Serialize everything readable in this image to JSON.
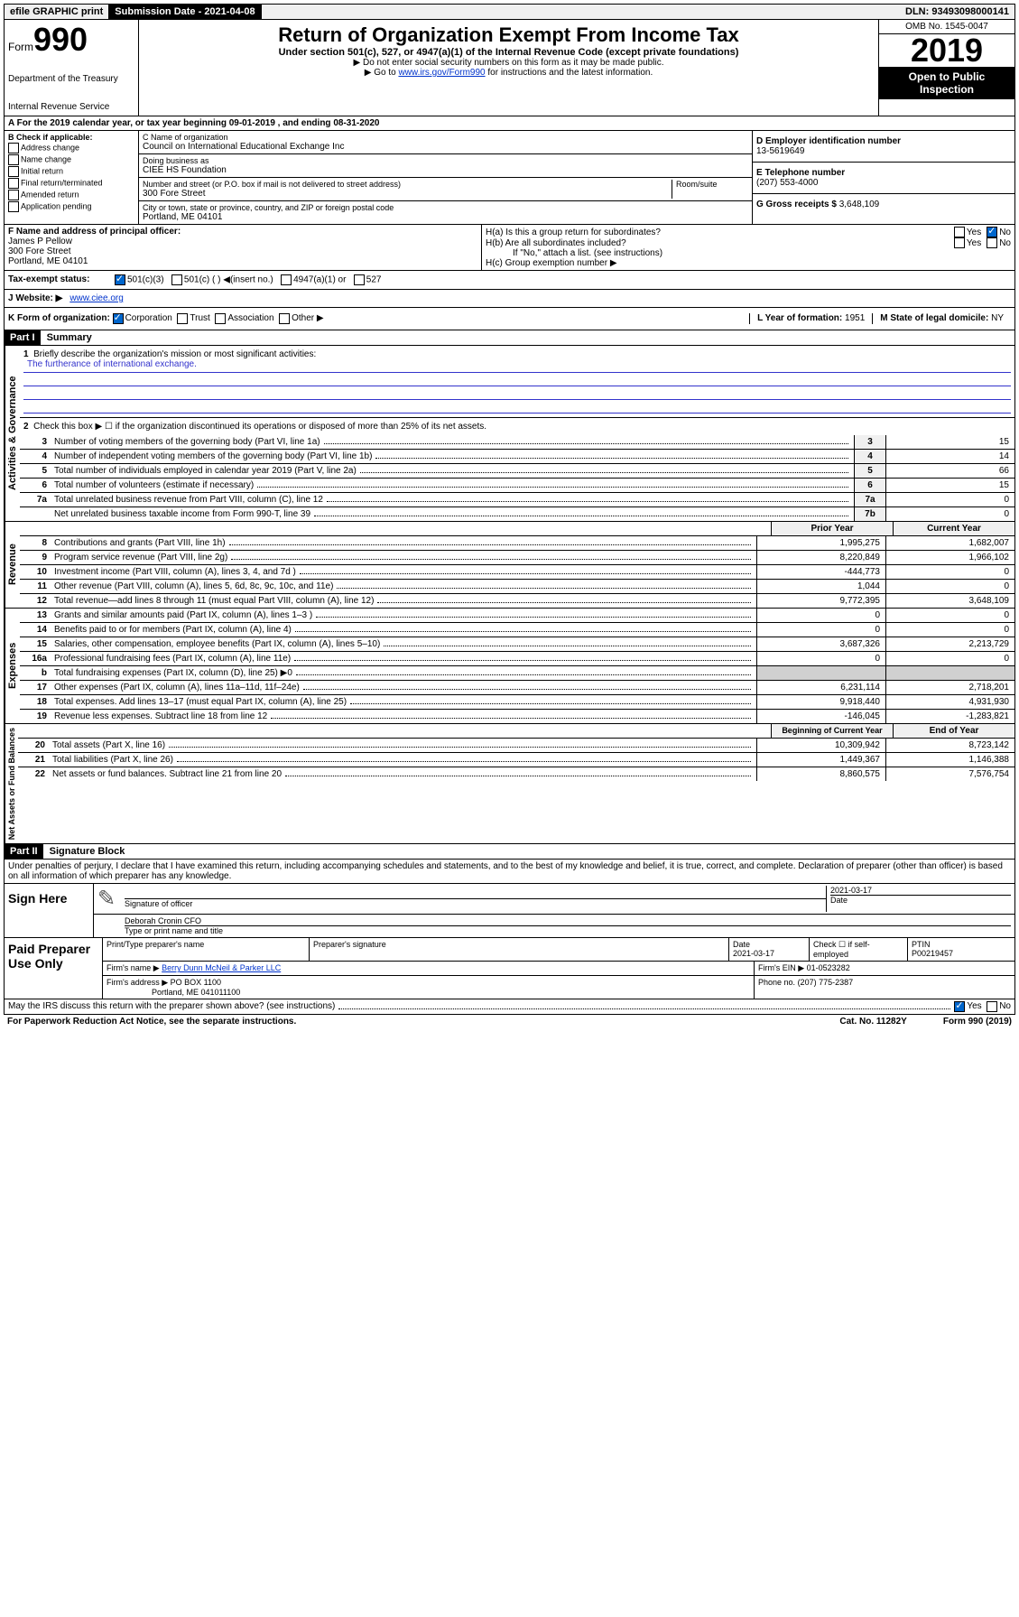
{
  "top": {
    "efile": "efile GRAPHIC print",
    "submission": "Submission Date - 2021-04-08",
    "dln": "DLN: 93493098000141"
  },
  "header": {
    "form_label": "Form",
    "form_number": "990",
    "dept1": "Department of the Treasury",
    "dept2": "Internal Revenue Service",
    "title": "Return of Organization Exempt From Income Tax",
    "subtitle": "Under section 501(c), 527, or 4947(a)(1) of the Internal Revenue Code (except private foundations)",
    "instr1": "▶ Do not enter social security numbers on this form as it may be made public.",
    "instr2_pre": "▶ Go to ",
    "instr2_link": "www.irs.gov/Form990",
    "instr2_post": " for instructions and the latest information.",
    "omb": "OMB No. 1545-0047",
    "year": "2019",
    "open": "Open to Public Inspection"
  },
  "section_a": "A For the 2019 calendar year, or tax year beginning 09-01-2019    , and ending 08-31-2020",
  "b": {
    "header": "B Check if applicable:",
    "opts": [
      "Address change",
      "Name change",
      "Initial return",
      "Final return/terminated",
      "Amended return",
      "Application pending"
    ]
  },
  "c": {
    "name_label": "C Name of organization",
    "name": "Council on International Educational Exchange Inc",
    "dba_label": "Doing business as",
    "dba": "CIEE HS Foundation",
    "addr_label": "Number and street (or P.O. box if mail is not delivered to street address)",
    "room_label": "Room/suite",
    "addr": "300 Fore Street",
    "city_label": "City or town, state or province, country, and ZIP or foreign postal code",
    "city": "Portland, ME  04101"
  },
  "d": {
    "label": "D Employer identification number",
    "value": "13-5619649"
  },
  "e": {
    "label": "E Telephone number",
    "value": "(207) 553-4000"
  },
  "g": {
    "label": "G Gross receipts $",
    "value": "3,648,109"
  },
  "f": {
    "label": "F  Name and address of principal officer:",
    "name": "James P Pellow",
    "addr1": "300 Fore Street",
    "addr2": "Portland, ME  04101"
  },
  "h": {
    "a": "H(a)  Is this a group return for subordinates?",
    "b": "H(b)  Are all subordinates included?",
    "b_note": "If \"No,\" attach a list. (see instructions)",
    "c": "H(c)  Group exemption number ▶"
  },
  "i": {
    "label": "Tax-exempt status:",
    "opt1": "501(c)(3)",
    "opt2": "501(c) (   ) ◀(insert no.)",
    "opt3": "4947(a)(1) or",
    "opt4": "527"
  },
  "j": {
    "label": "J Website: ▶",
    "value": "www.ciee.org"
  },
  "k": {
    "label": "K Form of organization:",
    "corp": "Corporation",
    "trust": "Trust",
    "assoc": "Association",
    "other": "Other ▶"
  },
  "l": {
    "label": "L Year of formation:",
    "value": "1951"
  },
  "m": {
    "label": "M State of legal domicile:",
    "value": "NY"
  },
  "part1": {
    "header": "Part I",
    "title": "Summary"
  },
  "summary": {
    "line1": "Briefly describe the organization's mission or most significant activities:",
    "mission": "The furtherance of international exchange.",
    "line2": "Check this box ▶ ☐  if the organization discontinued its operations or disposed of more than 25% of its net assets.",
    "lines": [
      {
        "n": "3",
        "t": "Number of voting members of the governing body (Part VI, line 1a)",
        "k": "3",
        "v": "15"
      },
      {
        "n": "4",
        "t": "Number of independent voting members of the governing body (Part VI, line 1b)",
        "k": "4",
        "v": "14"
      },
      {
        "n": "5",
        "t": "Total number of individuals employed in calendar year 2019 (Part V, line 2a)",
        "k": "5",
        "v": "66"
      },
      {
        "n": "6",
        "t": "Total number of volunteers (estimate if necessary)",
        "k": "6",
        "v": "15"
      },
      {
        "n": "7a",
        "t": "Total unrelated business revenue from Part VIII, column (C), line 12",
        "k": "7a",
        "v": "0"
      },
      {
        "n": "",
        "t": "Net unrelated business taxable income from Form 990-T, line 39",
        "k": "7b",
        "v": "0"
      }
    ],
    "col_head_prior": "Prior Year",
    "col_head_current": "Current Year",
    "revenue": [
      {
        "n": "8",
        "t": "Contributions and grants (Part VIII, line 1h)",
        "p": "1,995,275",
        "c": "1,682,007"
      },
      {
        "n": "9",
        "t": "Program service revenue (Part VIII, line 2g)",
        "p": "8,220,849",
        "c": "1,966,102"
      },
      {
        "n": "10",
        "t": "Investment income (Part VIII, column (A), lines 3, 4, and 7d )",
        "p": "-444,773",
        "c": "0"
      },
      {
        "n": "11",
        "t": "Other revenue (Part VIII, column (A), lines 5, 6d, 8c, 9c, 10c, and 11e)",
        "p": "1,044",
        "c": "0"
      },
      {
        "n": "12",
        "t": "Total revenue—add lines 8 through 11 (must equal Part VIII, column (A), line 12)",
        "p": "9,772,395",
        "c": "3,648,109"
      }
    ],
    "expenses": [
      {
        "n": "13",
        "t": "Grants and similar amounts paid (Part IX, column (A), lines 1–3 )",
        "p": "0",
        "c": "0"
      },
      {
        "n": "14",
        "t": "Benefits paid to or for members (Part IX, column (A), line 4)",
        "p": "0",
        "c": "0"
      },
      {
        "n": "15",
        "t": "Salaries, other compensation, employee benefits (Part IX, column (A), lines 5–10)",
        "p": "3,687,326",
        "c": "2,213,729"
      },
      {
        "n": "16a",
        "t": "Professional fundraising fees (Part IX, column (A), line 11e)",
        "p": "0",
        "c": "0"
      },
      {
        "n": "b",
        "t": "Total fundraising expenses (Part IX, column (D), line 25) ▶0",
        "p": "",
        "c": "",
        "gray": true
      },
      {
        "n": "17",
        "t": "Other expenses (Part IX, column (A), lines 11a–11d, 11f–24e)",
        "p": "6,231,114",
        "c": "2,718,201"
      },
      {
        "n": "18",
        "t": "Total expenses. Add lines 13–17 (must equal Part IX, column (A), line 25)",
        "p": "9,918,440",
        "c": "4,931,930"
      },
      {
        "n": "19",
        "t": "Revenue less expenses. Subtract line 18 from line 12",
        "p": "-146,045",
        "c": "-1,283,821"
      }
    ],
    "col_head_begin": "Beginning of Current Year",
    "col_head_end": "End of Year",
    "netassets": [
      {
        "n": "20",
        "t": "Total assets (Part X, line 16)",
        "p": "10,309,942",
        "c": "8,723,142"
      },
      {
        "n": "21",
        "t": "Total liabilities (Part X, line 26)",
        "p": "1,449,367",
        "c": "1,146,388"
      },
      {
        "n": "22",
        "t": "Net assets or fund balances. Subtract line 21 from line 20",
        "p": "8,860,575",
        "c": "7,576,754"
      }
    ]
  },
  "part2": {
    "header": "Part II",
    "title": "Signature Block"
  },
  "sig": {
    "declaration": "Under penalties of perjury, I declare that I have examined this return, including accompanying schedules and statements, and to the best of my knowledge and belief, it is true, correct, and complete. Declaration of preparer (other than officer) is based on all information of which preparer has any knowledge.",
    "sign_here": "Sign Here",
    "sig_officer": "Signature of officer",
    "date": "2021-03-17",
    "date_label": "Date",
    "officer_name": "Deborah Cronin CFO",
    "type_name": "Type or print name and title"
  },
  "preparer": {
    "label": "Paid Preparer Use Only",
    "print_name": "Print/Type preparer's name",
    "prep_sig": "Preparer's signature",
    "date_label": "Date",
    "date": "2021-03-17",
    "check_label": "Check ☐ if self-employed",
    "ptin_label": "PTIN",
    "ptin": "P00219457",
    "firm_name_label": "Firm's name    ▶",
    "firm_name": "Berry Dunn McNeil & Parker LLC",
    "firm_ein_label": "Firm's EIN ▶",
    "firm_ein": "01-0523282",
    "firm_addr_label": "Firm's address ▶",
    "firm_addr1": "PO BOX 1100",
    "firm_addr2": "Portland, ME  041011100",
    "phone_label": "Phone no.",
    "phone": "(207) 775-2387"
  },
  "footer": {
    "discuss": "May the IRS discuss this return with the preparer shown above? (see instructions)",
    "yes": "Yes",
    "no": "No",
    "paperwork": "For Paperwork Reduction Act Notice, see the separate instructions.",
    "cat": "Cat. No. 11282Y",
    "form": "Form 990 (2019)"
  },
  "vlabels": {
    "gov": "Activities & Governance",
    "rev": "Revenue",
    "exp": "Expenses",
    "net": "Net Assets or Fund Balances"
  }
}
